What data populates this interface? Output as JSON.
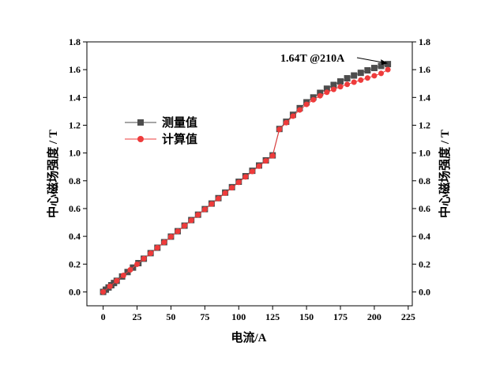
{
  "chart_data": {
    "type": "scatter",
    "xlabel": "电流/A",
    "ylabel_left": "中心磁场强度 / T",
    "ylabel_right": "中心磁场强度 / T",
    "xlim": [
      -12,
      228
    ],
    "ylim": [
      -0.1,
      1.8
    ],
    "xticks": [
      0,
      25,
      50,
      75,
      100,
      125,
      150,
      175,
      200,
      225
    ],
    "yticks": [
      0.0,
      0.2,
      0.4,
      0.6,
      0.8,
      1.0,
      1.2,
      1.4,
      1.6,
      1.8
    ],
    "xtick_labels": [
      "0",
      "25",
      "50",
      "75",
      "100",
      "125",
      "150",
      "175",
      "200",
      "225"
    ],
    "ytick_labels": [
      "0.0",
      "0.2",
      "0.4",
      "0.6",
      "0.8",
      "1.0",
      "1.2",
      "1.4",
      "1.6",
      "1.8"
    ],
    "grid": false,
    "legend_position": "upper-left",
    "annotation": {
      "text": "1.64T @210A",
      "x": 210,
      "y": 1.64
    },
    "series": [
      {
        "name": "测量值",
        "color": "#4d4d4d",
        "marker": "square",
        "x": [
          0,
          2,
          4,
          6,
          8,
          10,
          14,
          18,
          22,
          26,
          30,
          35,
          40,
          45,
          50,
          55,
          60,
          65,
          70,
          75,
          80,
          85,
          90,
          95,
          100,
          105,
          110,
          115,
          120,
          125,
          130,
          135,
          140,
          145,
          150,
          155,
          160,
          165,
          170,
          175,
          180,
          185,
          190,
          195,
          200,
          205,
          210
        ],
        "y": [
          0.0,
          0.016,
          0.032,
          0.048,
          0.064,
          0.08,
          0.111,
          0.143,
          0.175,
          0.207,
          0.239,
          0.279,
          0.318,
          0.358,
          0.398,
          0.437,
          0.477,
          0.517,
          0.556,
          0.596,
          0.636,
          0.675,
          0.715,
          0.754,
          0.793,
          0.833,
          0.872,
          0.91,
          0.947,
          0.983,
          1.173,
          1.225,
          1.275,
          1.323,
          1.365,
          1.4,
          1.433,
          1.463,
          1.49,
          1.515,
          1.538,
          1.558,
          1.577,
          1.595,
          1.612,
          1.627,
          1.64
        ]
      },
      {
        "name": "计算值",
        "color": "#ee3b3b",
        "marker": "circle",
        "x": [
          0,
          5,
          10,
          15,
          20,
          25,
          30,
          35,
          40,
          45,
          50,
          55,
          60,
          65,
          70,
          75,
          80,
          85,
          90,
          95,
          100,
          105,
          110,
          115,
          120,
          125,
          130,
          135,
          140,
          145,
          150,
          155,
          160,
          165,
          170,
          175,
          180,
          185,
          190,
          195,
          200,
          205,
          210
        ],
        "y": [
          0.0,
          0.04,
          0.08,
          0.119,
          0.159,
          0.199,
          0.239,
          0.278,
          0.318,
          0.357,
          0.397,
          0.436,
          0.476,
          0.515,
          0.555,
          0.594,
          0.633,
          0.672,
          0.711,
          0.75,
          0.789,
          0.828,
          0.867,
          0.905,
          0.943,
          0.98,
          1.17,
          1.218,
          1.265,
          1.31,
          1.35,
          1.383,
          1.412,
          1.437,
          1.458,
          1.477,
          1.494,
          1.51,
          1.525,
          1.54,
          1.556,
          1.573,
          1.6
        ]
      }
    ]
  },
  "colors": {
    "axis": "#000000",
    "arrow": "#000000"
  }
}
